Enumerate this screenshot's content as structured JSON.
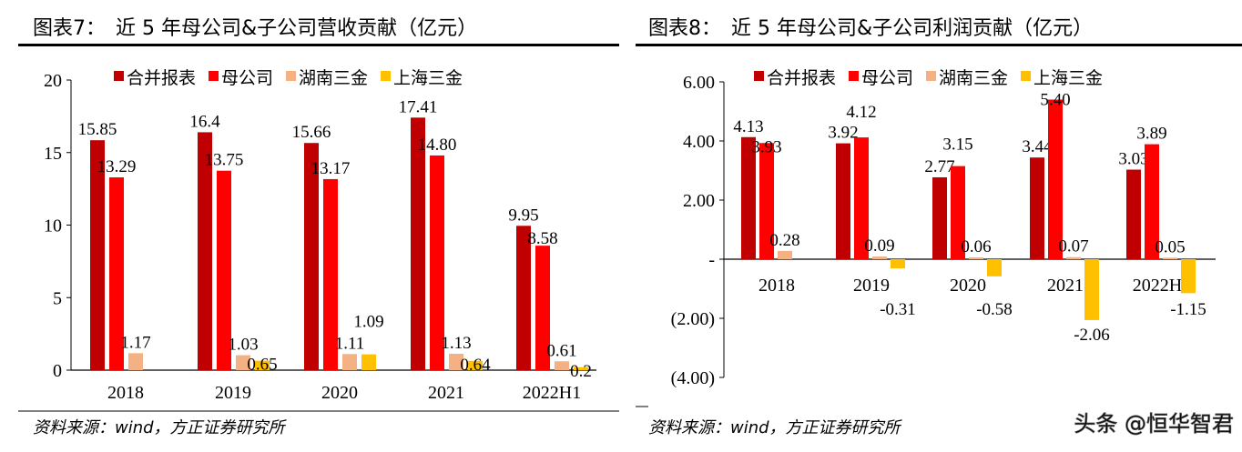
{
  "chart_data": [
    {
      "type": "bar",
      "title": "图表7：　近 5 年母公司&子公司营收贡献（亿元）",
      "source": "资料来源：wind，方正证券研究所",
      "categories": [
        "2018",
        "2019",
        "2020",
        "2021",
        "2022H1"
      ],
      "ylim": [
        0,
        20
      ],
      "yticks": [
        0,
        5,
        10,
        15,
        20
      ],
      "ytick_labels": [
        "0",
        "5",
        "10",
        "15",
        "20"
      ],
      "legend_position": "top",
      "series": [
        {
          "name": "合并报表",
          "color": "#C00000",
          "values": [
            15.85,
            16.4,
            15.66,
            17.41,
            9.95
          ],
          "labels": [
            "15.85",
            "16.4",
            "15.66",
            "17.41",
            "9.95"
          ]
        },
        {
          "name": "母公司",
          "color": "#FF0000",
          "values": [
            13.29,
            13.75,
            13.17,
            14.8,
            8.58
          ],
          "labels": [
            "13.29",
            "13.75",
            "13.17",
            "14.80",
            "8.58"
          ]
        },
        {
          "name": "湖南三金",
          "color": "#F4B183",
          "values": [
            1.17,
            1.03,
            1.11,
            1.13,
            0.61
          ],
          "labels": [
            "1.17",
            "1.03",
            "1.11",
            "1.13",
            "0.61"
          ]
        },
        {
          "name": "上海三金",
          "color": "#FFC000",
          "values": [
            null,
            0.65,
            1.09,
            0.64,
            0.2
          ],
          "labels": [
            "",
            "0.65",
            "1.09",
            "0.64",
            "0.2"
          ]
        }
      ]
    },
    {
      "type": "bar",
      "title": "图表8：　近 5 年母公司&子公司利润贡献（亿元）",
      "source": "资料来源：wind，方正证券研究所",
      "categories": [
        "2018",
        "2019",
        "2020",
        "2021",
        "2022H1"
      ],
      "ylim": [
        -4,
        6
      ],
      "yticks": [
        -4,
        -2,
        0,
        2,
        4,
        6
      ],
      "ytick_labels": [
        "(4.00)",
        "(2.00)",
        "-",
        "2.00",
        "4.00",
        "6.00"
      ],
      "legend_position": "top",
      "series": [
        {
          "name": "合并报表",
          "color": "#C00000",
          "values": [
            4.13,
            3.92,
            2.77,
            3.44,
            3.03
          ],
          "labels": [
            "4.13",
            "3.92",
            "2.77",
            "3.44",
            "3.03"
          ]
        },
        {
          "name": "母公司",
          "color": "#FF0000",
          "values": [
            3.93,
            4.12,
            3.15,
            5.4,
            3.89
          ],
          "labels": [
            "3.93",
            "4.12",
            "3.15",
            "5.40",
            "3.89"
          ]
        },
        {
          "name": "湖南三金",
          "color": "#F4B183",
          "values": [
            0.28,
            0.09,
            0.06,
            0.07,
            0.05
          ],
          "labels": [
            "0.28",
            "0.09",
            "0.06",
            "0.07",
            "0.05"
          ]
        },
        {
          "name": "上海三金",
          "color": "#FFC000",
          "values": [
            null,
            -0.31,
            -0.58,
            -2.06,
            -1.15
          ],
          "labels": [
            "",
            "-0.31",
            "-0.58",
            "-2.06",
            "-1.15"
          ]
        }
      ]
    }
  ],
  "watermark": "头条 @恒华智君"
}
